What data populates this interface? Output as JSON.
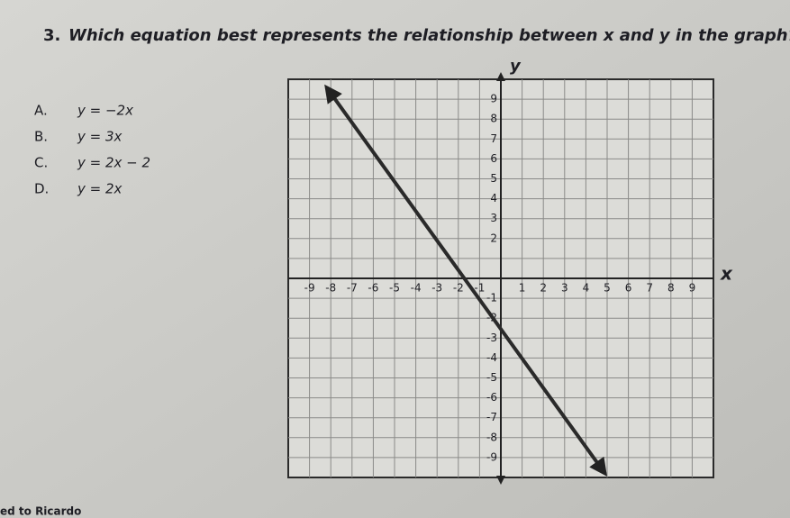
{
  "question": {
    "number": "3.",
    "text": "Which equation best represents the relationship between x and y in the graph?"
  },
  "choices": [
    {
      "letter": "A.",
      "equation": "y = −2x"
    },
    {
      "letter": "B.",
      "equation": "y = 3x"
    },
    {
      "letter": "C.",
      "equation": "y = 2x − 2"
    },
    {
      "letter": "D.",
      "equation": "y = 2x"
    }
  ],
  "graph": {
    "x_label": "x",
    "y_label": "y",
    "x_ticks": [
      -9,
      -8,
      -7,
      -6,
      -5,
      -4,
      -3,
      -2,
      -1,
      1,
      2,
      3,
      4,
      5,
      6,
      7,
      8,
      9
    ],
    "y_ticks": [
      9,
      8,
      7,
      6,
      5,
      4,
      3,
      2,
      -1,
      -2,
      -3,
      -4,
      -5,
      -6,
      -7,
      -8,
      -9
    ]
  },
  "footer": "ed to Ricardo"
}
